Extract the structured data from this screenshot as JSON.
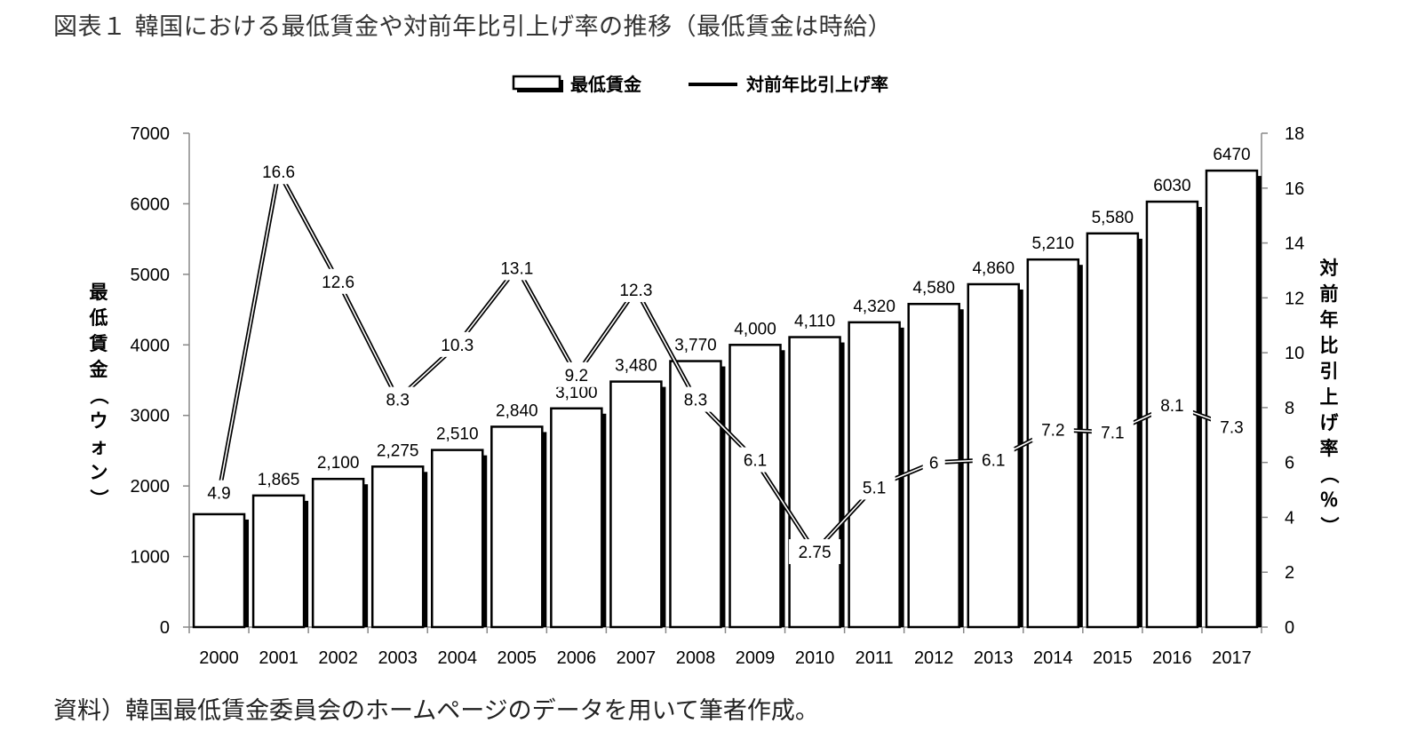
{
  "title": "図表１ 韓国における最低賃金や対前年比引上げ率の推移（最低賃金は時給）",
  "source": "資料）韓国最低賃金委員会のホームページのデータを用いて筆者作成。",
  "chart_data": {
    "type": "bar",
    "categories": [
      "2000",
      "2001",
      "2002",
      "2003",
      "2004",
      "2005",
      "2006",
      "2007",
      "2008",
      "2009",
      "2010",
      "2011",
      "2012",
      "2013",
      "2014",
      "2015",
      "2016",
      "2017"
    ],
    "series": [
      {
        "name": "最低賃金",
        "type": "bar",
        "axis": "left",
        "values": [
          1600,
          1865,
          2100,
          2275,
          2510,
          2840,
          3100,
          3480,
          3770,
          4000,
          4110,
          4320,
          4580,
          4860,
          5210,
          5580,
          6030,
          6470
        ],
        "labels": [
          "",
          "1,865",
          "2,100",
          "2,275",
          "2,510",
          "2,840",
          "3,100",
          "3,480",
          "3,770",
          "4,000",
          "4,110",
          "4,320",
          "4,580",
          "4,860",
          "5,210",
          "5,580",
          "6030",
          "6470"
        ]
      },
      {
        "name": "対前年比引上げ率",
        "type": "line",
        "axis": "right",
        "values": [
          4.9,
          16.6,
          12.6,
          8.3,
          10.3,
          13.1,
          9.2,
          12.3,
          8.3,
          6.1,
          2.75,
          5.1,
          6,
          6.1,
          7.2,
          7.1,
          8.1,
          7.3
        ],
        "labels": [
          "4.9",
          "16.6",
          "12.6",
          "8.3",
          "10.3",
          "13.1",
          "9.2",
          "12.3",
          "8.3",
          "6.1",
          "2.75",
          "5.1",
          "6",
          "6.1",
          "7.2",
          "7.1",
          "8.1",
          "7.3"
        ]
      }
    ],
    "y_left": {
      "label": "最低賃金（ウォン）",
      "min": 0,
      "max": 7000,
      "ticks": [
        0,
        1000,
        2000,
        3000,
        4000,
        5000,
        6000,
        7000
      ]
    },
    "y_right": {
      "label": "対前年比引上げ率（％）",
      "min": 0,
      "max": 18,
      "ticks": [
        0,
        2,
        4,
        6,
        8,
        10,
        12,
        14,
        16,
        18
      ]
    },
    "legend": {
      "placement": "top-center"
    },
    "grid": false
  }
}
